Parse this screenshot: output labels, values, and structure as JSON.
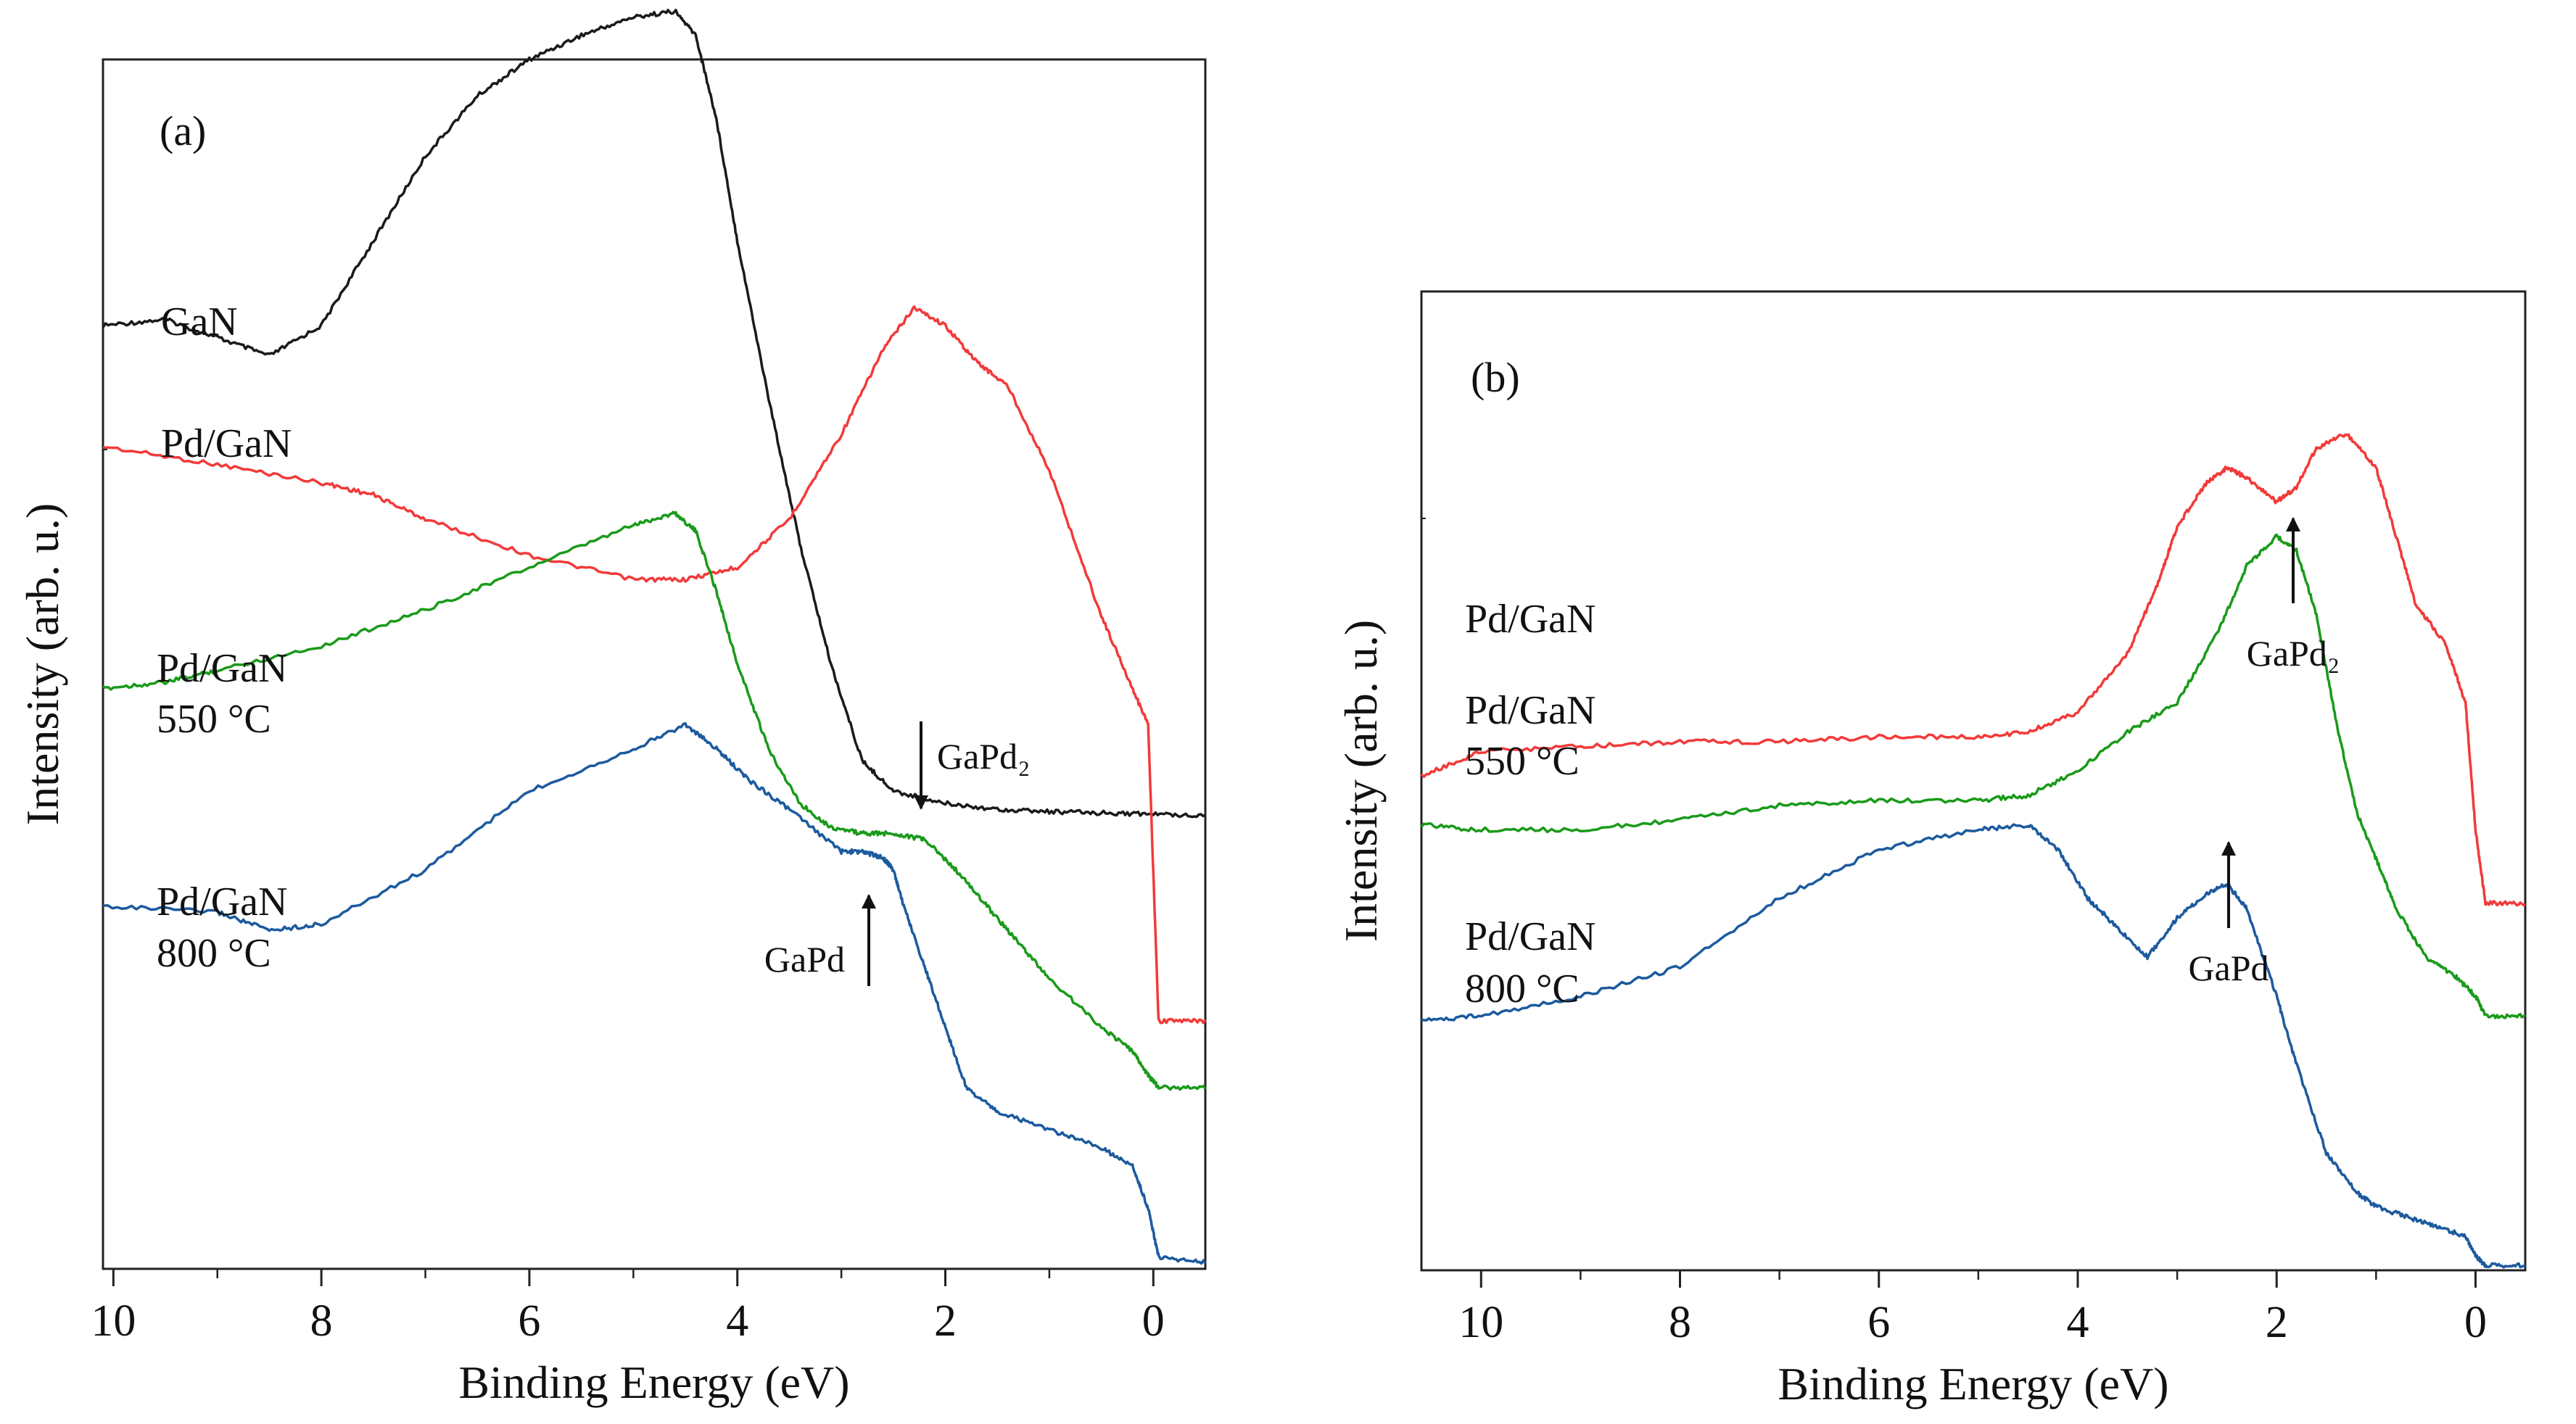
{
  "chart_data": [
    {
      "type": "line",
      "panel_label": "(a)",
      "xlabel": "Binding Energy (eV)",
      "ylabel": "Intensity (arb. u.)",
      "xlim": [
        10.1,
        -0.5
      ],
      "ylim": [
        0,
        10
      ],
      "x_ticks": [
        10,
        8,
        6,
        4,
        2,
        0
      ],
      "tick_labels": [
        "10",
        "8",
        "6",
        "4",
        "2",
        "0"
      ],
      "series": [
        {
          "name": "GaN",
          "color": "#1a1a1a",
          "x": [
            10.1,
            9.5,
            9.0,
            8.5,
            8.0,
            7.5,
            7.0,
            6.5,
            6.0,
            5.5,
            5.0,
            4.6,
            4.4,
            4.2,
            4.0,
            3.7,
            3.4,
            3.1,
            2.8,
            2.5,
            2.0,
            1.5,
            1.0,
            0.5,
            0.0,
            -0.5
          ],
          "y": [
            7.8,
            7.85,
            7.7,
            7.55,
            7.8,
            8.5,
            9.2,
            9.7,
            10.0,
            10.2,
            10.35,
            10.4,
            10.2,
            9.5,
            8.5,
            7.2,
            6.0,
            5.0,
            4.2,
            3.95,
            3.85,
            3.8,
            3.78,
            3.77,
            3.76,
            3.75
          ]
        },
        {
          "name": "Pd/GaN",
          "color": "#f23a3a",
          "x": [
            10.1,
            9.0,
            8.0,
            7.5,
            7.0,
            6.0,
            5.0,
            4.5,
            4.0,
            3.5,
            3.0,
            2.6,
            2.3,
            2.0,
            1.7,
            1.4,
            1.0,
            0.5,
            0.2,
            0.05,
            -0.05,
            -0.5
          ],
          "y": [
            6.8,
            6.65,
            6.5,
            6.4,
            6.2,
            5.9,
            5.7,
            5.7,
            5.8,
            6.2,
            6.9,
            7.6,
            7.95,
            7.8,
            7.5,
            7.3,
            6.6,
            5.4,
            4.8,
            4.5,
            2.05,
            2.05
          ]
        },
        {
          "name": "Pd/GaN 550 °C",
          "color": "#1a9a1a",
          "x": [
            10.1,
            9.5,
            9.0,
            8.0,
            7.0,
            6.0,
            5.0,
            4.6,
            4.4,
            4.2,
            4.0,
            3.7,
            3.4,
            3.1,
            2.8,
            2.5,
            2.2,
            1.9,
            1.6,
            1.3,
            1.0,
            0.5,
            0.2,
            0.05,
            -0.05,
            -0.5
          ],
          "y": [
            4.8,
            4.85,
            4.95,
            5.15,
            5.45,
            5.8,
            6.15,
            6.25,
            6.1,
            5.6,
            5.0,
            4.3,
            3.85,
            3.65,
            3.6,
            3.6,
            3.55,
            3.3,
            3.0,
            2.7,
            2.4,
            2.0,
            1.8,
            1.6,
            1.5,
            1.5
          ]
        },
        {
          "name": "Pd/GaN 800 °C",
          "color": "#1c5a9e",
          "x": [
            10.1,
            9.0,
            8.5,
            8.0,
            7.0,
            6.0,
            5.0,
            4.5,
            4.2,
            3.9,
            3.5,
            3.0,
            2.8,
            2.6,
            2.5,
            2.4,
            2.2,
            2.0,
            1.8,
            1.5,
            1.0,
            0.5,
            0.2,
            0.05,
            -0.05,
            -0.5
          ],
          "y": [
            3.0,
            2.95,
            2.8,
            2.85,
            3.3,
            3.95,
            4.3,
            4.5,
            4.3,
            4.05,
            3.8,
            3.45,
            3.45,
            3.4,
            3.3,
            3.0,
            2.5,
            2.0,
            1.5,
            1.3,
            1.15,
            1.0,
            0.85,
            0.5,
            0.1,
            0.05
          ]
        }
      ],
      "annotations": [
        {
          "text": "GaN",
          "series": "GaN"
        },
        {
          "text": "Pd/GaN",
          "series": "Pd/GaN"
        },
        {
          "text": "Pd/GaN",
          "sub": "550 °C",
          "series": "Pd/GaN 550 °C"
        },
        {
          "text": "Pd/GaN",
          "sub": "800 °C",
          "series": "Pd/GaN 800 °C"
        },
        {
          "text": "GaPd₂",
          "arrow": "down",
          "x": 2.2
        },
        {
          "text": "GaPd",
          "arrow": "up",
          "x": 2.75
        }
      ]
    },
    {
      "type": "line",
      "panel_label": "(b)",
      "xlabel": "Binding Energy (eV)",
      "ylabel": "Intensity (arb. u.)",
      "xlim": [
        10.6,
        -0.5
      ],
      "ylim": [
        0,
        10
      ],
      "x_ticks": [
        10,
        8,
        6,
        4,
        2,
        0
      ],
      "tick_labels": [
        "10",
        "8",
        "6",
        "4",
        "2",
        "0"
      ],
      "series": [
        {
          "name": "Pd/GaN",
          "color": "#f23a3a",
          "x": [
            10.6,
            10.0,
            9.0,
            8.0,
            7.0,
            6.0,
            5.0,
            4.5,
            4.0,
            3.5,
            3.2,
            3.0,
            2.7,
            2.5,
            2.3,
            2.0,
            1.8,
            1.6,
            1.3,
            1.0,
            0.8,
            0.6,
            0.3,
            0.1,
            0.0,
            -0.1,
            -0.5
          ],
          "y": [
            5.05,
            5.3,
            5.35,
            5.4,
            5.4,
            5.45,
            5.45,
            5.5,
            5.7,
            6.3,
            7.0,
            7.6,
            8.05,
            8.2,
            8.1,
            7.85,
            8.0,
            8.4,
            8.55,
            8.2,
            7.5,
            6.8,
            6.4,
            5.8,
            4.5,
            3.75,
            3.75
          ]
        },
        {
          "name": "Pd/GaN 550 °C",
          "color": "#1a9a1a",
          "x": [
            10.6,
            10.0,
            9.0,
            8.0,
            7.0,
            6.0,
            5.0,
            4.5,
            4.0,
            3.5,
            3.0,
            2.6,
            2.3,
            2.0,
            1.8,
            1.6,
            1.4,
            1.2,
            1.0,
            0.8,
            0.5,
            0.2,
            0.0,
            -0.1,
            -0.5
          ],
          "y": [
            4.55,
            4.5,
            4.5,
            4.6,
            4.75,
            4.8,
            4.8,
            4.85,
            5.1,
            5.5,
            5.8,
            6.5,
            7.2,
            7.5,
            7.35,
            6.7,
            5.6,
            4.7,
            4.2,
            3.7,
            3.2,
            3.0,
            2.8,
            2.6,
            2.6
          ]
        },
        {
          "name": "Pd/GaN 800 °C",
          "color": "#1c5a9e",
          "x": [
            10.6,
            10.0,
            9.0,
            8.0,
            7.0,
            6.0,
            5.0,
            4.5,
            4.2,
            3.9,
            3.6,
            3.3,
            3.0,
            2.7,
            2.5,
            2.3,
            2.0,
            1.8,
            1.5,
            1.2,
            1.0,
            0.7,
            0.4,
            0.1,
            0.0,
            -0.1,
            -0.5
          ],
          "y": [
            2.55,
            2.6,
            2.8,
            3.1,
            3.8,
            4.3,
            4.5,
            4.55,
            4.3,
            3.8,
            3.5,
            3.2,
            3.6,
            3.85,
            3.95,
            3.7,
            2.8,
            2.1,
            1.2,
            0.8,
            0.65,
            0.55,
            0.45,
            0.35,
            0.15,
            0.05,
            0.05
          ]
        }
      ],
      "annotations": [
        {
          "text": "Pd/GaN",
          "series": "Pd/GaN"
        },
        {
          "text": "Pd/GaN",
          "sub": "550 °C",
          "series": "Pd/GaN 550 °C"
        },
        {
          "text": "Pd/GaN",
          "sub": "800 °C",
          "series": "Pd/GaN 800 °C"
        },
        {
          "text": "GaPd₂",
          "arrow": "up",
          "x": 1.8
        },
        {
          "text": "GaPd",
          "arrow": "up",
          "x": 2.5
        }
      ]
    }
  ]
}
